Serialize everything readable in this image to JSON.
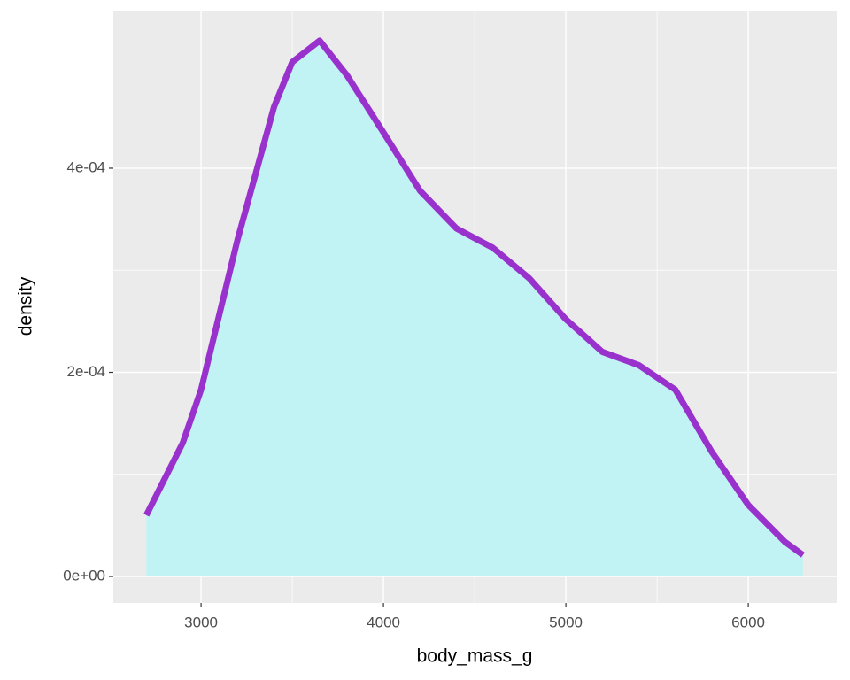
{
  "chart_data": {
    "type": "density",
    "x_label": "body_mass_g",
    "y_label": "density",
    "x": [
      2700,
      2900,
      3000,
      3200,
      3400,
      3500,
      3650,
      3800,
      4000,
      4200,
      4400,
      4600,
      4800,
      5000,
      5200,
      5400,
      5600,
      5800,
      6000,
      6200,
      6300
    ],
    "values": [
      6e-05,
      0.000131,
      0.000183,
      0.00033,
      0.00046,
      0.000504,
      0.000525,
      0.000491,
      0.000435,
      0.000378,
      0.000341,
      0.000322,
      0.000292,
      0.000252,
      0.00022,
      0.000207,
      0.000183,
      0.000122,
      7e-05,
      3.4e-05,
      2.1e-05
    ],
    "color": "#9932cc",
    "fill": "#c2f3f4",
    "xlim": [
      2519,
      6485
    ],
    "ylim": [
      -2.6e-05,
      0.0005544
    ],
    "xticks": [
      3000,
      4000,
      5000,
      6000
    ],
    "yticks": [
      {
        "value": 0,
        "label": "0e+00"
      },
      {
        "value": 0.0002,
        "label": "2e-04"
      },
      {
        "value": 0.0004,
        "label": "4e-04"
      }
    ],
    "minor_xticks": [
      3500,
      4500,
      5500
    ],
    "minor_yticks": [
      0.0001,
      0.0003,
      0.0005
    ],
    "grid": true
  }
}
